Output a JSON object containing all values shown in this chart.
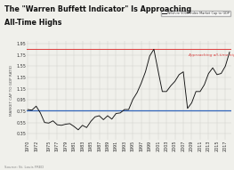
{
  "title_line1": "The \"Warren Buffett Indicator\" Is Approaching",
  "title_line2": "All-Time Highs",
  "ylabel": "MARKET CAP TO GDP RATIO",
  "source": "Source: St. Louis FRED",
  "legend_label": "Wilshire 5000 Index Market Cap to GDP",
  "annotation": "Approaching all-time highs",
  "background_color": "#f0f0eb",
  "grid_color": "#d0d0cc",
  "line_color": "#111111",
  "hline_blue": 0.76,
  "hline_red": 1.85,
  "hline_blue_color": "#3366bb",
  "hline_red_color": "#dd4444",
  "ylim": [
    0.25,
    2.0
  ],
  "xlim": [
    1969.8,
    2018.5
  ],
  "title_fontsize": 5.8,
  "tick_fontsize": 3.5,
  "years": [
    1970,
    1971,
    1972,
    1973,
    1974,
    1975,
    1976,
    1977,
    1978,
    1979,
    1980,
    1981,
    1982,
    1983,
    1984,
    1985,
    1986,
    1987,
    1988,
    1989,
    1990,
    1991,
    1992,
    1993,
    1994,
    1995,
    1996,
    1997,
    1998,
    1999,
    2000,
    2001,
    2002,
    2003,
    2004,
    2005,
    2006,
    2007,
    2008,
    2009,
    2010,
    2011,
    2012,
    2013,
    2014,
    2015,
    2016,
    2017,
    2018
  ],
  "values": [
    0.78,
    0.77,
    0.84,
    0.72,
    0.55,
    0.54,
    0.58,
    0.51,
    0.5,
    0.52,
    0.53,
    0.48,
    0.42,
    0.5,
    0.46,
    0.57,
    0.65,
    0.67,
    0.6,
    0.67,
    0.61,
    0.71,
    0.72,
    0.78,
    0.78,
    0.96,
    1.08,
    1.25,
    1.45,
    1.73,
    1.85,
    1.47,
    1.1,
    1.1,
    1.2,
    1.28,
    1.4,
    1.45,
    0.8,
    0.9,
    1.1,
    1.1,
    1.22,
    1.42,
    1.52,
    1.4,
    1.42,
    1.55,
    1.8
  ],
  "xtick_years": [
    1970,
    1972,
    1975,
    1977,
    1979,
    1981,
    1983,
    1985,
    1987,
    1989,
    1991,
    1993,
    1995,
    1997,
    1999,
    2001,
    2003,
    2005,
    2007,
    2009,
    2011,
    2013,
    2015,
    2017
  ],
  "yticks": [
    0.35,
    0.55,
    0.75,
    0.95,
    1.15,
    1.35,
    1.55,
    1.75,
    1.95
  ]
}
